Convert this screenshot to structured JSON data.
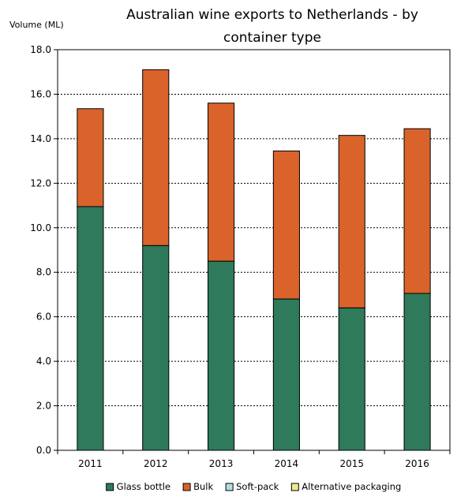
{
  "chart_data": {
    "type": "bar",
    "stacked": true,
    "title_lines": [
      "Australian wine exports to Netherlands - by",
      "container type"
    ],
    "ylabel": "Volume (ML)",
    "xlabel": "",
    "ylim": [
      0,
      18
    ],
    "yticks": [
      "0.0",
      "2.0",
      "4.0",
      "6.0",
      "8.0",
      "10.0",
      "12.0",
      "14.0",
      "16.0",
      "18.0"
    ],
    "grid": true,
    "legend_position": "bottom",
    "categories": [
      "2011",
      "2012",
      "2013",
      "2014",
      "2015",
      "2016"
    ],
    "series": [
      {
        "name": "Glass bottle",
        "color": "#2e7a5b",
        "values": [
          10.95,
          9.2,
          8.5,
          6.8,
          6.4,
          7.05
        ]
      },
      {
        "name": "Bulk",
        "color": "#d9632a",
        "values": [
          4.4,
          7.9,
          7.1,
          6.65,
          7.75,
          7.4
        ]
      },
      {
        "name": "Soft-pack",
        "color": "#b6dde0",
        "values": [
          0,
          0,
          0,
          0,
          0,
          0
        ]
      },
      {
        "name": "Alternative packaging",
        "color": "#f0e98a",
        "values": [
          0,
          0,
          0,
          0,
          0,
          0
        ]
      }
    ]
  }
}
